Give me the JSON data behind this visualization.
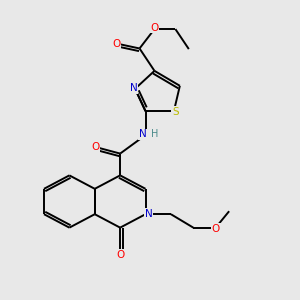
{
  "bg_color": "#e8e8e8",
  "atom_colors": {
    "C": "#000000",
    "N": "#0000cc",
    "O": "#ff0000",
    "S": "#bbbb00",
    "H": "#4a8a8a"
  },
  "bond_color": "#000000",
  "bond_width": 1.4,
  "figsize": [
    3.0,
    3.0
  ],
  "dpi": 100
}
